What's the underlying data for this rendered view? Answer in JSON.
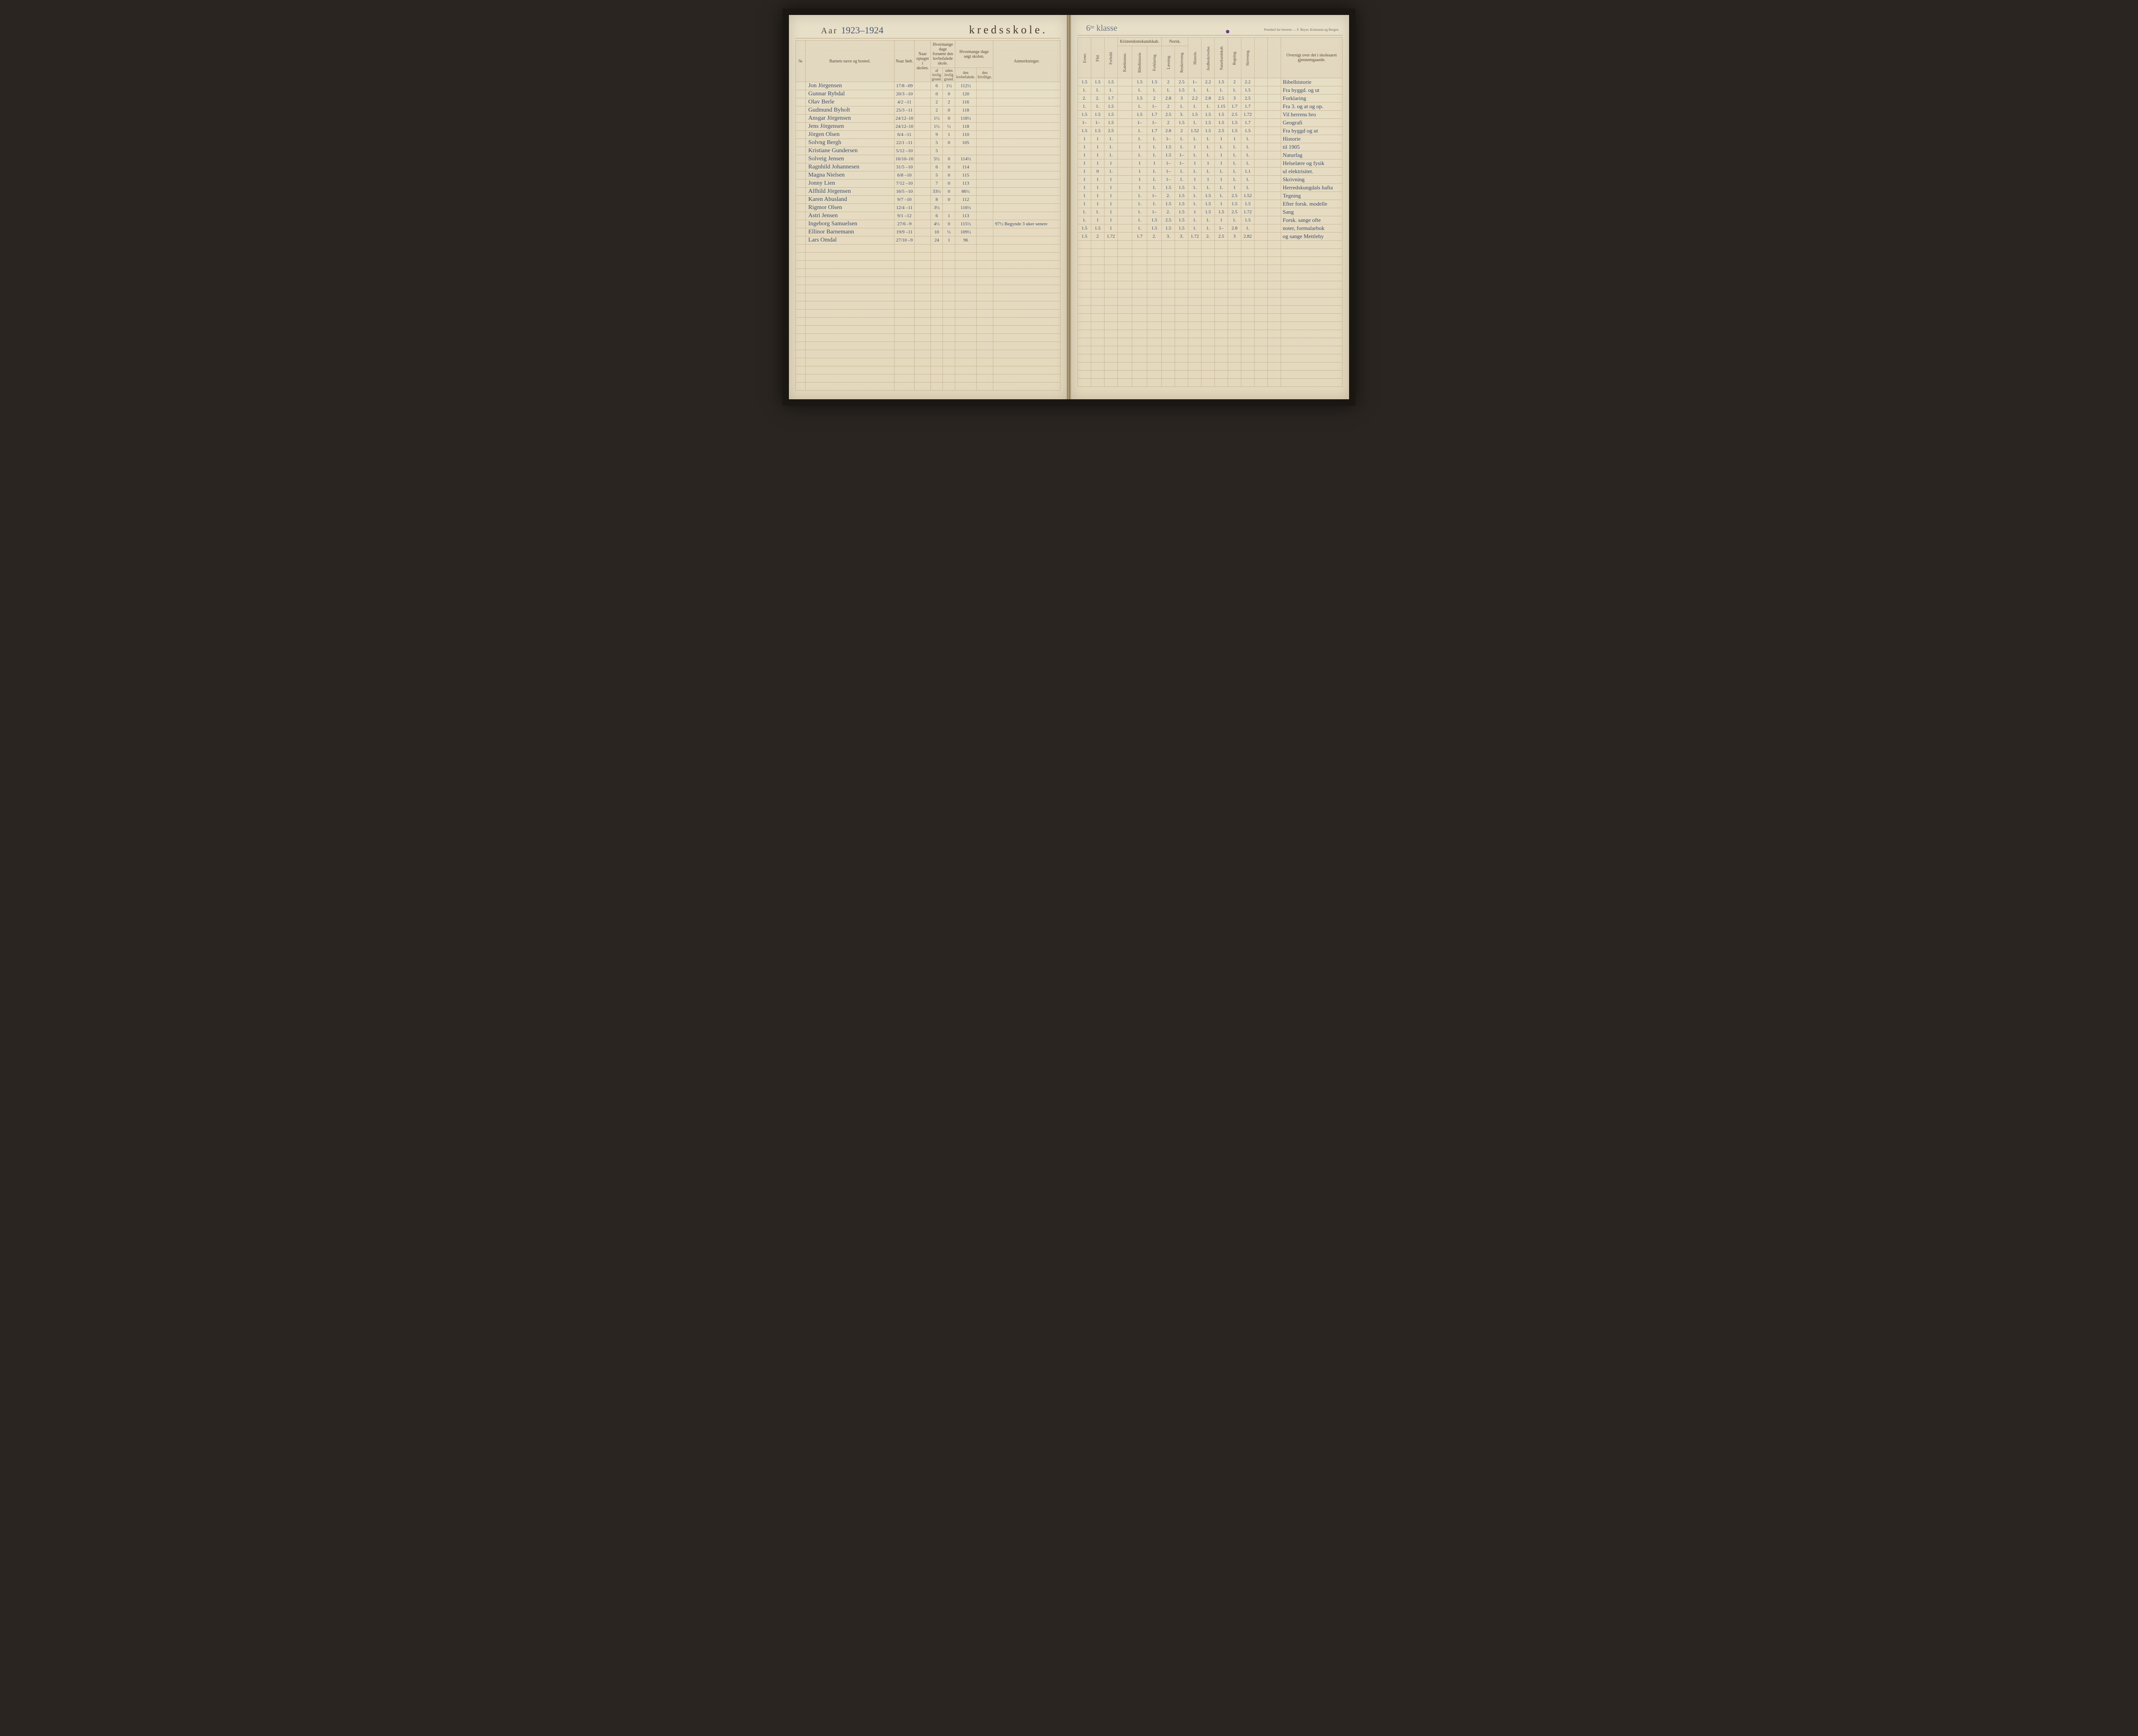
{
  "header": {
    "aar_label": "Aar",
    "aar_value": "1923–1924",
    "kredsskole": "kredsskole.",
    "klasse": "6ᵗᵉ klasse",
    "publisher": "Protokol for læreren — F. Beyer, Kristiania og Bergen"
  },
  "left_headers": {
    "num": "№",
    "name": "Barnets navn og bosted.",
    "born": "Naar født.",
    "enrolled": "Naar optaget i skolen.",
    "absent_group": "Hvormange dage forsømt den lovbefalede skole.",
    "attend_group": "Hvormange dage søgt skolen.",
    "abs_lawful": "af lovlig grund.",
    "abs_unlawful": "uden lovlig grund.",
    "att_law": "den lovbefalede.",
    "att_vol": "den frivillige.",
    "remarks": "Anmerkninger."
  },
  "right_headers": {
    "evner": "Evner.",
    "flid": "Flid.",
    "forhold": "Forhold.",
    "kristen_group": "Kristendomskundskab.",
    "katekismus": "Katekismus.",
    "bibelhist": "Bibelhistorie.",
    "forklaring": "Forklaring.",
    "norsk_group": "Norsk.",
    "laesning": "Læsning.",
    "retskriv": "Retskrivning.",
    "historie": "Historie.",
    "jordbeskr": "Jordbeskrivelse.",
    "naturkund": "Naturkundskab.",
    "regning": "Regning.",
    "skrivning": "Skrivning.",
    "oversigt": "Oversigt over det i skoleaaret gjennemgaaede."
  },
  "students": [
    {
      "name": "Jon Jörgensen",
      "born": "17/8 –09",
      "abs1": "6",
      "abs2": "1½",
      "att": "112½",
      "g": [
        "1.5",
        "1.5",
        "1.5",
        "",
        "1.5",
        "1.5",
        "2",
        "2.5",
        "1–",
        "2.2",
        "1.5",
        "2",
        "2.2"
      ],
      "note": "Bibelhistorie"
    },
    {
      "name": "Gunnar Rybdal",
      "born": "20/3 –10",
      "abs1": "0",
      "abs2": "0",
      "att": "120",
      "g": [
        "1.",
        "1.",
        "1.",
        "",
        "1.",
        "1.",
        "1.",
        "1.5",
        "1.",
        "1.",
        "1.",
        "1.",
        "1.5"
      ],
      "note": "Fra byggd. og ut"
    },
    {
      "name": "Olav Berle",
      "born": "4/2 –11",
      "abs1": "2",
      "abs2": "2",
      "att": "116",
      "g": [
        "2.",
        "2.",
        "1.7",
        "",
        "1.5",
        "2",
        "2.8",
        "3",
        "2.2",
        "2.8",
        "2.5",
        "3",
        "2.5"
      ],
      "note": "Forklaring"
    },
    {
      "name": "Gudmund Byholt",
      "born": "25/3 –11",
      "abs1": "2",
      "abs2": "0",
      "att": "118",
      "g": [
        "1.",
        "1.",
        "1.5",
        "",
        "1.",
        "1–",
        "2",
        "1.",
        "1.",
        "1.",
        "1.15",
        "1.7",
        "1.7"
      ],
      "note": "Fra 3. og at og op."
    },
    {
      "name": "Ansgar Jörgensen",
      "born": "24/12–10",
      "abs1": "1½",
      "abs2": "0",
      "att": "118½",
      "g": [
        "1.5",
        "1.5",
        "1.5",
        "",
        "1.5",
        "1.7",
        "2.5",
        "3.",
        "1.5",
        "1.5",
        "1.5",
        "2.5",
        "1.72"
      ],
      "note": "Vil herrens bro"
    },
    {
      "name": "Jens Jörgensen",
      "born": "24/12–10",
      "abs1": "1½",
      "abs2": "½",
      "att": "118",
      "g": [
        "1–",
        "1–",
        "1.5",
        "",
        "1–",
        "1–",
        "2",
        "1.5",
        "1.",
        "1.5",
        "1.5",
        "1.5",
        "1.7"
      ],
      "note": "Geografi"
    },
    {
      "name": "Jörgen Olsen",
      "born": "6/4 –11",
      "abs1": "9",
      "abs2": "1",
      "att": "110",
      "g": [
        "1.5",
        "1.5",
        "2.5",
        "",
        "1.",
        "1.7",
        "2.8",
        "2",
        "1.52",
        "1.5",
        "2.5",
        "1.5",
        "1.5"
      ],
      "note": "Fra byggd og ut"
    },
    {
      "name": "Solvng Bergh",
      "born": "22/1 –11",
      "abs1": "5",
      "abs2": "0",
      "att": "105",
      "g": [
        "1",
        "1",
        "1.",
        "",
        "1.",
        "1.",
        "1–",
        "1.",
        "1.",
        "1.",
        "1",
        "1",
        "1."
      ],
      "note": "Historie"
    },
    {
      "name": "Kristiane Gundersen",
      "born": "5/12 –10",
      "abs1": "5",
      "abs2": "",
      "att": "",
      "g": [
        "1",
        "1",
        "1.",
        "",
        "1",
        "1.",
        "1.5",
        "1.",
        "1",
        "1.",
        "1.",
        "1.",
        "1."
      ],
      "note": "til 1905"
    },
    {
      "name": "Solveig Jensen",
      "born": "16/10–10",
      "abs1": "5½",
      "abs2": "0",
      "att": "114½",
      "g": [
        "1",
        "1",
        "1.",
        "",
        "1.",
        "1.",
        "1.5",
        "1–",
        "1.",
        "1.",
        "1",
        "1.",
        "1."
      ],
      "note": "Naturfag"
    },
    {
      "name": "Ragnhild Johannesen",
      "born": "31/5 –10",
      "abs1": "6",
      "abs2": "0",
      "att": "114",
      "g": [
        "1",
        "1",
        "1",
        "",
        "1",
        "1",
        "1–",
        "1–",
        "1",
        "1",
        "1",
        "1.",
        "1."
      ],
      "note": "Helselære og fysik"
    },
    {
      "name": "Magna Nielsen",
      "born": "6/8 –10",
      "abs1": "5",
      "abs2": "0",
      "att": "115",
      "g": [
        "1",
        "0",
        "1.",
        "",
        "1",
        "1.",
        "1–",
        "1.",
        "1.",
        "1.",
        "1.",
        "1.",
        "1.1"
      ],
      "note": "ul elektrisitet."
    },
    {
      "name": "Jonny Lien",
      "born": "7/12 –10",
      "abs1": "7",
      "abs2": "0",
      "att": "113",
      "g": [
        "1",
        "1",
        "1",
        "",
        "1",
        "1.",
        "1–",
        "1.",
        "1",
        "1",
        "1",
        "1.",
        "1."
      ],
      "note": "Skrivning"
    },
    {
      "name": "Alfhild Jörgensen",
      "born": "16/5 –10",
      "abs1": "33½",
      "abs2": "0",
      "att": "86½",
      "g": [
        "1",
        "1",
        "1",
        "",
        "1",
        "1.",
        "1.5",
        "1.5",
        "1.",
        "1.",
        "1.",
        "1",
        "1."
      ],
      "note": "Herredskungdals hafta"
    },
    {
      "name": "Karen Abusland",
      "born": "9/7 –10",
      "abs1": "8",
      "abs2": "0",
      "att": "112",
      "g": [
        "1",
        "1",
        "1",
        "",
        "1.",
        "1–",
        "2.",
        "1.5",
        "1.",
        "1.5",
        "1.",
        "2.5",
        "1.52"
      ],
      "note": "Tegning"
    },
    {
      "name": "Rigmor Olsen",
      "born": "12/4 –11",
      "abs1": "3½",
      "abs2": "",
      "att": "116½",
      "g": [
        "1",
        "1",
        "1",
        "",
        "1.",
        "1.",
        "1.5",
        "1.5",
        "1.",
        "1.5",
        "1",
        "1.5",
        "1.5"
      ],
      "note": "Efter forsk. modelle"
    },
    {
      "name": "Astri Jensen",
      "born": "9/1 –12",
      "abs1": "6",
      "abs2": "1",
      "att": "113",
      "g": [
        "1.",
        "1.",
        "1",
        "",
        "1.",
        "1–",
        "2.",
        "1.5",
        "1",
        "1.5",
        "1.5",
        "2.5",
        "1.72"
      ],
      "note": "Sang"
    },
    {
      "name": "Ingeborg Samuelsen",
      "born": "27/6 –9",
      "abs1": "4½",
      "abs2": "0",
      "att": "115½",
      "anm": "97½ Begynde 3 uker senere",
      "g": [
        "1.",
        "1",
        "1",
        "",
        "1.",
        "1.5",
        "2.5",
        "1.5",
        "1.",
        "1.",
        "1",
        "1.",
        "1.5"
      ],
      "note": "Forsk. sange ofte"
    },
    {
      "name": "Ellinor Barnemann",
      "born": "19/9 –11",
      "abs1": "10",
      "abs2": "½",
      "att": "109½",
      "g": [
        "1.5",
        "1.5",
        "1",
        "",
        "1.",
        "1.5",
        "1.5",
        "1.5",
        "1.",
        "1.",
        "1–",
        "2.8",
        "1."
      ],
      "note": "noter, formularbok"
    },
    {
      "name": "Lars Omdal",
      "born": "27/10 –9",
      "abs1": "24",
      "abs2": "1",
      "att": "96",
      "g": [
        "1.5",
        "2",
        "1.72",
        "",
        "1.7",
        "2.",
        "3.",
        "3.",
        "1.72",
        "2.",
        "2.5",
        "3",
        "2.82"
      ],
      "note": "og sange Mettlehy"
    }
  ]
}
